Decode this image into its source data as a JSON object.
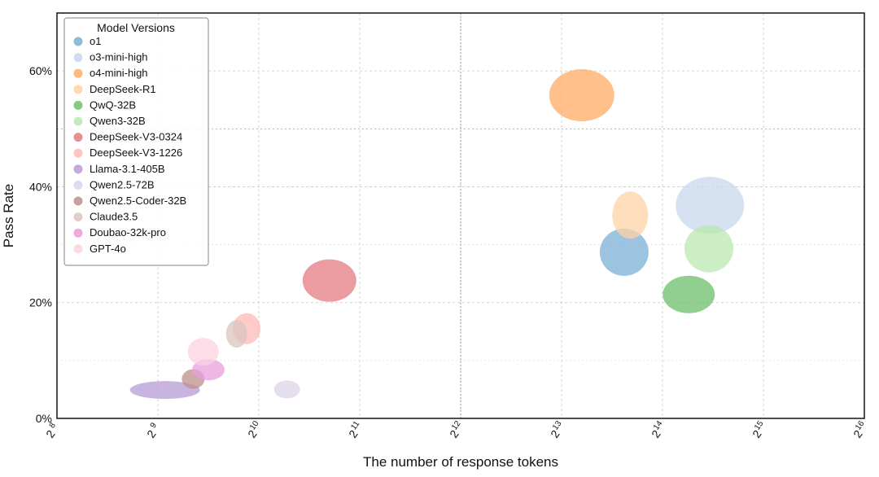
{
  "chart_data": {
    "type": "scatter",
    "title": "",
    "xlabel": "The number of response tokens",
    "ylabel": "Pass Rate",
    "x_scale": "log2",
    "xlim_exp": [
      8,
      16
    ],
    "x_ticks": [
      {
        "base": "2",
        "exp": "8"
      },
      {
        "base": "2",
        "exp": "9"
      },
      {
        "base": "2",
        "exp": "10"
      },
      {
        "base": "2",
        "exp": "11"
      },
      {
        "base": "2",
        "exp": "12"
      },
      {
        "base": "2",
        "exp": "13"
      },
      {
        "base": "2",
        "exp": "14"
      },
      {
        "base": "2",
        "exp": "15"
      },
      {
        "base": "2",
        "exp": "16"
      }
    ],
    "ylim": [
      0,
      70
    ],
    "y_ticks": [
      {
        "value": 0,
        "label": "0%"
      },
      {
        "value": 20,
        "label": "20%"
      },
      {
        "value": 40,
        "label": "40%"
      },
      {
        "value": 60,
        "label": "60%"
      }
    ],
    "grid": true,
    "legend": {
      "title": "Model Versions",
      "placement": "top-left"
    },
    "series": [
      {
        "name": "o1",
        "color": "#7bafd4",
        "x_exp": 13.62,
        "y": 28.7
      },
      {
        "name": "o3-mini-high",
        "color": "#c8d7ee",
        "x_exp": 14.47,
        "y": 36.8
      },
      {
        "name": "o4-mini-high",
        "color": "#ffab66",
        "x_exp": 13.2,
        "y": 55.8
      },
      {
        "name": "DeepSeek-R1",
        "color": "#ffd3a6",
        "x_exp": 13.68,
        "y": 35.1
      },
      {
        "name": "QwQ-32B",
        "color": "#6cbf6c",
        "x_exp": 14.26,
        "y": 21.4
      },
      {
        "name": "Qwen3-32B",
        "color": "#b9e8b0",
        "x_exp": 14.46,
        "y": 29.3
      },
      {
        "name": "DeepSeek-V3-0324",
        "color": "#e37b80",
        "x_exp": 10.7,
        "y": 23.8
      },
      {
        "name": "DeepSeek-V3-1226",
        "color": "#ffb9b6",
        "x_exp": 9.88,
        "y": 15.5
      },
      {
        "name": "Llama-3.1-405B",
        "color": "#b79bd6",
        "x_exp": 9.07,
        "y": 4.9
      },
      {
        "name": "Qwen2.5-72B",
        "color": "#dcd3e9",
        "x_exp": 10.28,
        "y": 5.0
      },
      {
        "name": "Qwen2.5-Coder-32B",
        "color": "#bc8f8c",
        "x_exp": 9.35,
        "y": 6.8
      },
      {
        "name": "Claude3.5",
        "color": "#d9c4bd",
        "x_exp": 9.78,
        "y": 14.6
      },
      {
        "name": "Doubao-32k-pro",
        "color": "#e89fdc",
        "x_exp": 9.5,
        "y": 8.4
      },
      {
        "name": "GPT-4o",
        "color": "#fbd2e0",
        "x_exp": 9.45,
        "y": 11.5
      }
    ]
  }
}
